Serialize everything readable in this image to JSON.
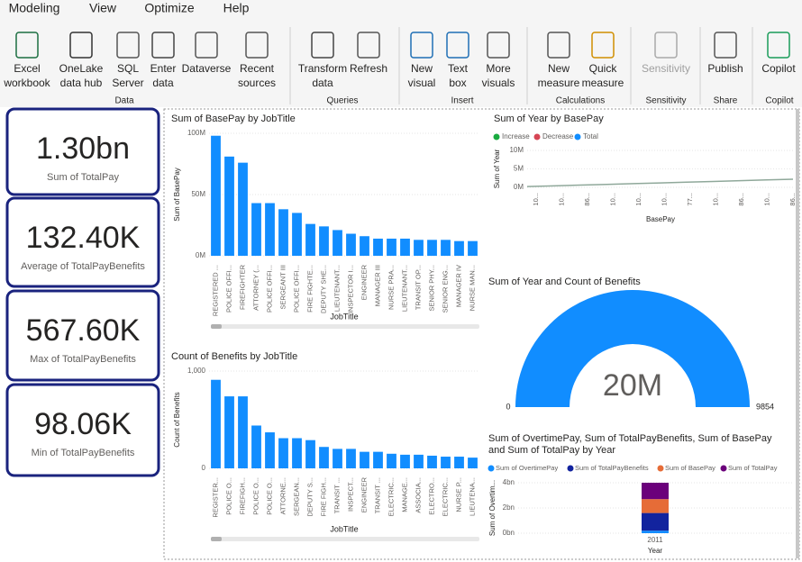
{
  "menu": [
    "Modeling",
    "View",
    "Optimize",
    "Help"
  ],
  "ribbon": {
    "groups": [
      {
        "name": "Data",
        "buttons": [
          [
            "Excel",
            "workbook"
          ],
          [
            "OneLake",
            "data hub"
          ],
          [
            "SQL",
            "Server"
          ],
          [
            "Enter",
            "data"
          ],
          [
            "Dataverse"
          ],
          [
            "Recent",
            "sources"
          ]
        ]
      },
      {
        "name": "Queries",
        "buttons": [
          [
            "Transform",
            "data"
          ],
          [
            "Refresh"
          ]
        ]
      },
      {
        "name": "Insert",
        "buttons": [
          [
            "New",
            "visual"
          ],
          [
            "Text",
            "box"
          ],
          [
            "More",
            "visuals"
          ]
        ]
      },
      {
        "name": "Calculations",
        "buttons": [
          [
            "New",
            "measure"
          ],
          [
            "Quick",
            "measure"
          ]
        ]
      },
      {
        "name": "Sensitivity",
        "buttons": [
          [
            "Sensitivity"
          ]
        ]
      },
      {
        "name": "Share",
        "buttons": [
          [
            "Publish"
          ]
        ]
      },
      {
        "name": "Copilot",
        "buttons": [
          [
            "Copilot"
          ]
        ]
      }
    ]
  },
  "cards": [
    {
      "value": "1.30bn",
      "label": "Sum of TotalPay"
    },
    {
      "value": "132.40K",
      "label": "Average of TotalPayBenefits"
    },
    {
      "value": "567.60K",
      "label": "Max of TotalPayBenefits"
    },
    {
      "value": "98.06K",
      "label": "Min of TotalPayBenefits"
    }
  ],
  "chart_data": [
    {
      "type": "bar",
      "title": "Sum of BasePay by JobTitle",
      "x_label": "JobTitle",
      "y_label": "Sum of BasePay",
      "color": "#118dff",
      "categories": [
        "REGISTERED ...",
        "POLICE OFFI...",
        "FIREFIGHTER",
        "ATTORNEY (...",
        "POLICE OFFI...",
        "SERGEANT III",
        "POLICE OFFI...",
        "FIRE FIGHTE...",
        "DEPUTY SHE...",
        "LIEUTENANT...",
        "INSPECTOR I...",
        "ENGINEER",
        "MANAGER III",
        "NURSE PRA...",
        "LIEUTENANT...",
        "TRANSIT OP...",
        "SENIOR PHY...",
        "SENIOR ENG...",
        "MANAGER IV",
        "NURSE MAN..."
      ],
      "values": [
        98000000,
        81000000,
        76000000,
        43000000,
        43000000,
        38000000,
        35000000,
        26000000,
        24000000,
        21000000,
        18000000,
        16000000,
        14000000,
        14000000,
        14000000,
        13000000,
        13000000,
        13000000,
        12000000,
        12000000
      ],
      "ylim": [
        0,
        100000000
      ],
      "yticks": [
        {
          "value": 0,
          "label": "0M"
        },
        {
          "value": 50000000,
          "label": "50M"
        },
        {
          "value": 100000000,
          "label": "100M"
        }
      ]
    },
    {
      "type": "bar",
      "title": "Count of Benefits by JobTitle",
      "x_label": "JobTitle",
      "y_label": "Count of Benefits",
      "color": "#118dff",
      "categories": [
        "REGISTER...",
        "POLICE O...",
        "FIREFIGH...",
        "POLICE O...",
        "POLICE O...",
        "ATTORNE...",
        "SERGEAN...",
        "DEPUTY S...",
        "FIRE FIGH...",
        "TRANSIT ...",
        "INSPECT...",
        "ENGINEER",
        "TRANSIT ...",
        "ELECTRIC...",
        "MANAGE...",
        "ASSOCIA...",
        "ELECTRO...",
        "ELECTRIC...",
        "NURSE P...",
        "LIEUTENA..."
      ],
      "values": [
        910,
        740,
        740,
        440,
        370,
        310,
        310,
        290,
        220,
        200,
        200,
        170,
        170,
        150,
        140,
        140,
        130,
        120,
        120,
        110
      ],
      "ylim": [
        0,
        1000
      ],
      "yticks": [
        0,
        {
          "value": 1000,
          "label": "1,000"
        }
      ]
    },
    {
      "type": "line",
      "title": "Sum of Year by BasePay",
      "x_label": "BasePay",
      "y_label": "Sum of Year",
      "color": "#8fa89a",
      "legend": [
        {
          "name": "Increase",
          "color": "#1aab40"
        },
        {
          "name": "Decrease",
          "color": "#d64554"
        },
        {
          "name": "Total",
          "color": "#118dff"
        }
      ],
      "categories": [
        "10...",
        "10...",
        "86...",
        "10...",
        "10...",
        "10...",
        "77...",
        "10...",
        "86...",
        "10...",
        "86..."
      ],
      "values": [
        200000,
        400000,
        600000,
        800000,
        1000000,
        1200000,
        1400000,
        1600000,
        1800000,
        2000000,
        2200000
      ],
      "ylim": [
        0,
        10000000
      ],
      "yticks": [
        {
          "value": 0,
          "label": "0M"
        },
        {
          "value": 5000000,
          "label": "5M"
        },
        {
          "value": 10000000,
          "label": "10M"
        }
      ]
    },
    {
      "type": "gauge",
      "title": "Sum of Year and Count of Benefits",
      "color": "#118dff",
      "value": 20000000,
      "value_label": "20M",
      "min": 0,
      "max": 9854
    },
    {
      "type": "stacked_bar",
      "title": "Sum of OvertimePay, Sum of TotalPayBenefits, Sum of BasePay and Sum of TotalPay by Year",
      "x_label": "Year",
      "y_label": "Sum of Overtim...",
      "categories": [
        "2011"
      ],
      "series": [
        {
          "name": "Sum of OvertimePay",
          "color": "#118dff",
          "values": [
            200000000
          ]
        },
        {
          "name": "Sum of TotalPayBenefits",
          "color": "#12239e",
          "values": [
            1400000000
          ]
        },
        {
          "name": "Sum of BasePay",
          "color": "#e66c37",
          "values": [
            1100000000
          ]
        },
        {
          "name": "Sum of TotalPay",
          "color": "#6b007b",
          "values": [
            1300000000
          ]
        }
      ],
      "ylim": [
        0,
        4000000000
      ],
      "yticks": [
        {
          "value": 0,
          "label": "0bn"
        },
        {
          "value": 2000000000,
          "label": "2bn"
        },
        {
          "value": 4000000000,
          "label": "4bn"
        }
      ]
    }
  ]
}
